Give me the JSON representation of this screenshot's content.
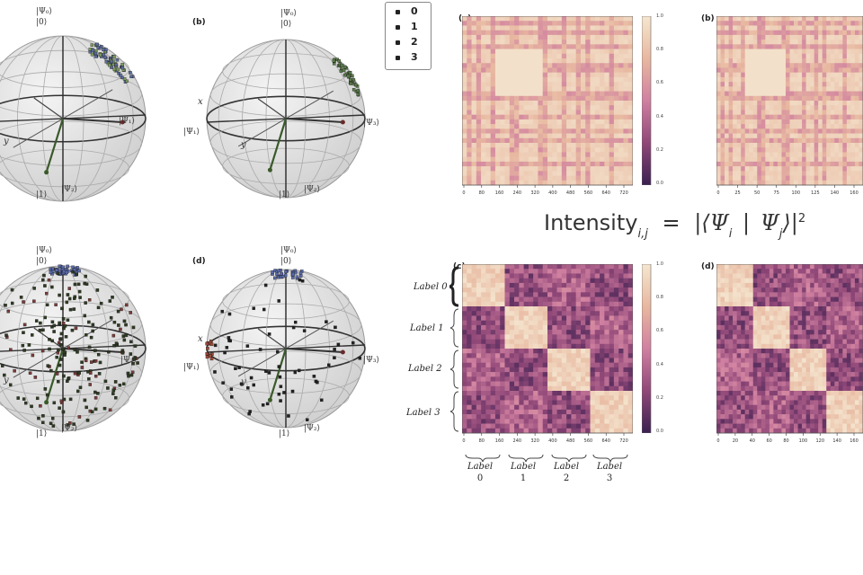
{
  "legend": {
    "items": [
      {
        "label": "0"
      },
      {
        "label": "1"
      },
      {
        "label": "2"
      },
      {
        "label": "3"
      }
    ]
  },
  "spheres": [
    {
      "tag": "",
      "top_label": "|Ψ₀⟩",
      "top_label2": "|0⟩",
      "right_label": "|Ψ₁⟩",
      "bottom_label": "|1⟩",
      "bottom_label2": "|Ψ₂⟩",
      "left_label": "",
      "axis_y": "y",
      "axis_x": "",
      "point_cluster": "top-right",
      "point_color": "#5a7a4a"
    },
    {
      "tag": "(b)",
      "top_label": "|Ψ₀⟩",
      "top_label2": "|0⟩",
      "right_label": "|Ψ₃⟩",
      "bottom_label": "|1⟩",
      "bottom_label2": "|Ψ₂⟩",
      "left_label": "|Ψ₁⟩",
      "axis_y": "y",
      "axis_x": "x",
      "point_cluster": "right-edge",
      "point_color": "#4a6a3a"
    },
    {
      "tag": "",
      "top_label": "|Ψ₀⟩",
      "top_label2": "|0⟩",
      "right_label": "|Ψ₃⟩",
      "bottom_label": "|1⟩",
      "bottom_label2": "|Ψ₂⟩",
      "left_label": "",
      "axis_y": "y",
      "axis_x": "",
      "point_cluster": "scattered",
      "point_color": "#3a5a2a"
    },
    {
      "tag": "(d)",
      "top_label": "|Ψ₀⟩",
      "top_label2": "|0⟩",
      "right_label": "|Ψ₃⟩",
      "bottom_label": "|1⟩",
      "bottom_label2": "|Ψ₂⟩",
      "left_label": "|Ψ₁⟩",
      "axis_y": "y",
      "axis_x": "x",
      "point_cluster": "sparse",
      "point_color": "#2a2a2a"
    }
  ],
  "heatmaps": [
    {
      "tag": "(a)",
      "ticks": [
        "0",
        "80",
        "160",
        "240",
        "320",
        "400",
        "480",
        "560",
        "640",
        "720"
      ],
      "has_colorbar": true
    },
    {
      "tag": "(b)",
      "ticks": [
        "0",
        "25",
        "50",
        "75",
        "100",
        "125",
        "140",
        "160"
      ],
      "has_colorbar": false
    },
    {
      "tag": "(c)",
      "ticks": [
        "0",
        "80",
        "160",
        "240",
        "320",
        "400",
        "480",
        "560",
        "640",
        "720"
      ],
      "has_colorbar": true
    },
    {
      "tag": "(d)",
      "ticks": [
        "0",
        "20",
        "40",
        "60",
        "80",
        "100",
        "120",
        "140",
        "160"
      ],
      "has_colorbar": false
    }
  ],
  "colorbar": {
    "ticks": [
      "1.0",
      "0.8",
      "0.6",
      "0.4",
      "0.2",
      "0.0"
    ],
    "stops": [
      "#f5e6d0",
      "#e8b8a0",
      "#d080a0",
      "#904878",
      "#3a2050"
    ]
  },
  "formula": {
    "word": "Intensity",
    "subscript": "i,j",
    "equals": "=",
    "expr_open": "|⟨Ψ",
    "sub_i": "i",
    "bar": "|",
    "psi_j": "Ψ",
    "sub_j": "j",
    "expr_close": "⟩|",
    "power": "2"
  },
  "row_labels": [
    "Label 0",
    "Label 1",
    "Label 2",
    "Label 3"
  ],
  "col_labels": [
    {
      "lbl": "Label",
      "num": "0"
    },
    {
      "lbl": "Label",
      "num": "1"
    },
    {
      "lbl": "Label",
      "num": "2"
    },
    {
      "lbl": "Label",
      "num": "3"
    }
  ]
}
